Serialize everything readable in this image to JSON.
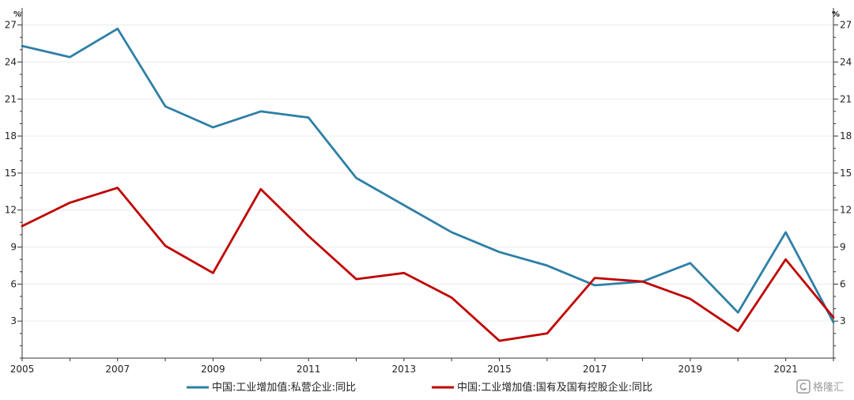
{
  "chart_data": {
    "type": "line",
    "y_unit_left": "%",
    "y_unit_right": "%",
    "x": [
      2005,
      2006,
      2007,
      2008,
      2009,
      2010,
      2011,
      2012,
      2013,
      2014,
      2015,
      2016,
      2017,
      2018,
      2019,
      2020,
      2021,
      2022
    ],
    "x_tick_labels": [
      "2005",
      "2007",
      "2009",
      "2011",
      "2013",
      "2015",
      "2017",
      "2019",
      "2021"
    ],
    "y_ticks": [
      3,
      6,
      9,
      12,
      15,
      18,
      21,
      24,
      27
    ],
    "ylim": [
      0,
      28
    ],
    "xlim": [
      2005,
      2022
    ],
    "grid": true,
    "legend_position": "bottom",
    "series": [
      {
        "name": "中国:工业增加值:私营企业:同比",
        "color": "#2e7fa6",
        "values": [
          25.3,
          24.4,
          26.7,
          20.4,
          18.7,
          20.0,
          19.5,
          14.6,
          12.4,
          10.2,
          8.6,
          7.5,
          5.9,
          6.2,
          7.7,
          3.7,
          10.2,
          2.9
        ]
      },
      {
        "name": "中国:工业增加值:国有及国有控股企业:同比",
        "color": "#c00000",
        "values": [
          10.7,
          12.6,
          13.8,
          9.1,
          6.9,
          13.7,
          9.9,
          6.4,
          6.9,
          4.9,
          1.4,
          2.0,
          6.5,
          6.2,
          4.8,
          2.2,
          8.0,
          3.3
        ]
      }
    ]
  },
  "watermark": {
    "text": "格隆汇"
  }
}
